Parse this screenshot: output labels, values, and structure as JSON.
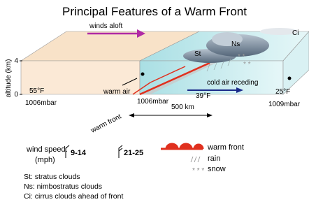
{
  "title": "Principal Features of a Warm Front",
  "labels": {
    "winds_aloft": "winds aloft",
    "ci": "Ci",
    "ns": "Ns",
    "st": "St",
    "altitude": "altitude (km)",
    "alt_top": "4",
    "alt_bottom": "0",
    "temp_warm": "55°F",
    "warm_air": "warm air",
    "cold_air": "cold air receding",
    "temp_front": "39°F",
    "temp_cold": "25°F",
    "pressure_left": "1006mbar",
    "pressure_front": "1006mbar",
    "pressure_right": "1009mbar",
    "distance": "500 km",
    "front": "warm front"
  },
  "legend": {
    "wind_speed": "wind speed:",
    "mph": "(mph)",
    "slow": "9-14",
    "fast": "21-25",
    "warm_front": "warm front",
    "rain": "rain",
    "snow": "snow"
  },
  "notes": [
    "St: stratus clouds",
    "Ns: nimbostratus clouds",
    "Ci: cirrus clouds ahead of front"
  ]
}
